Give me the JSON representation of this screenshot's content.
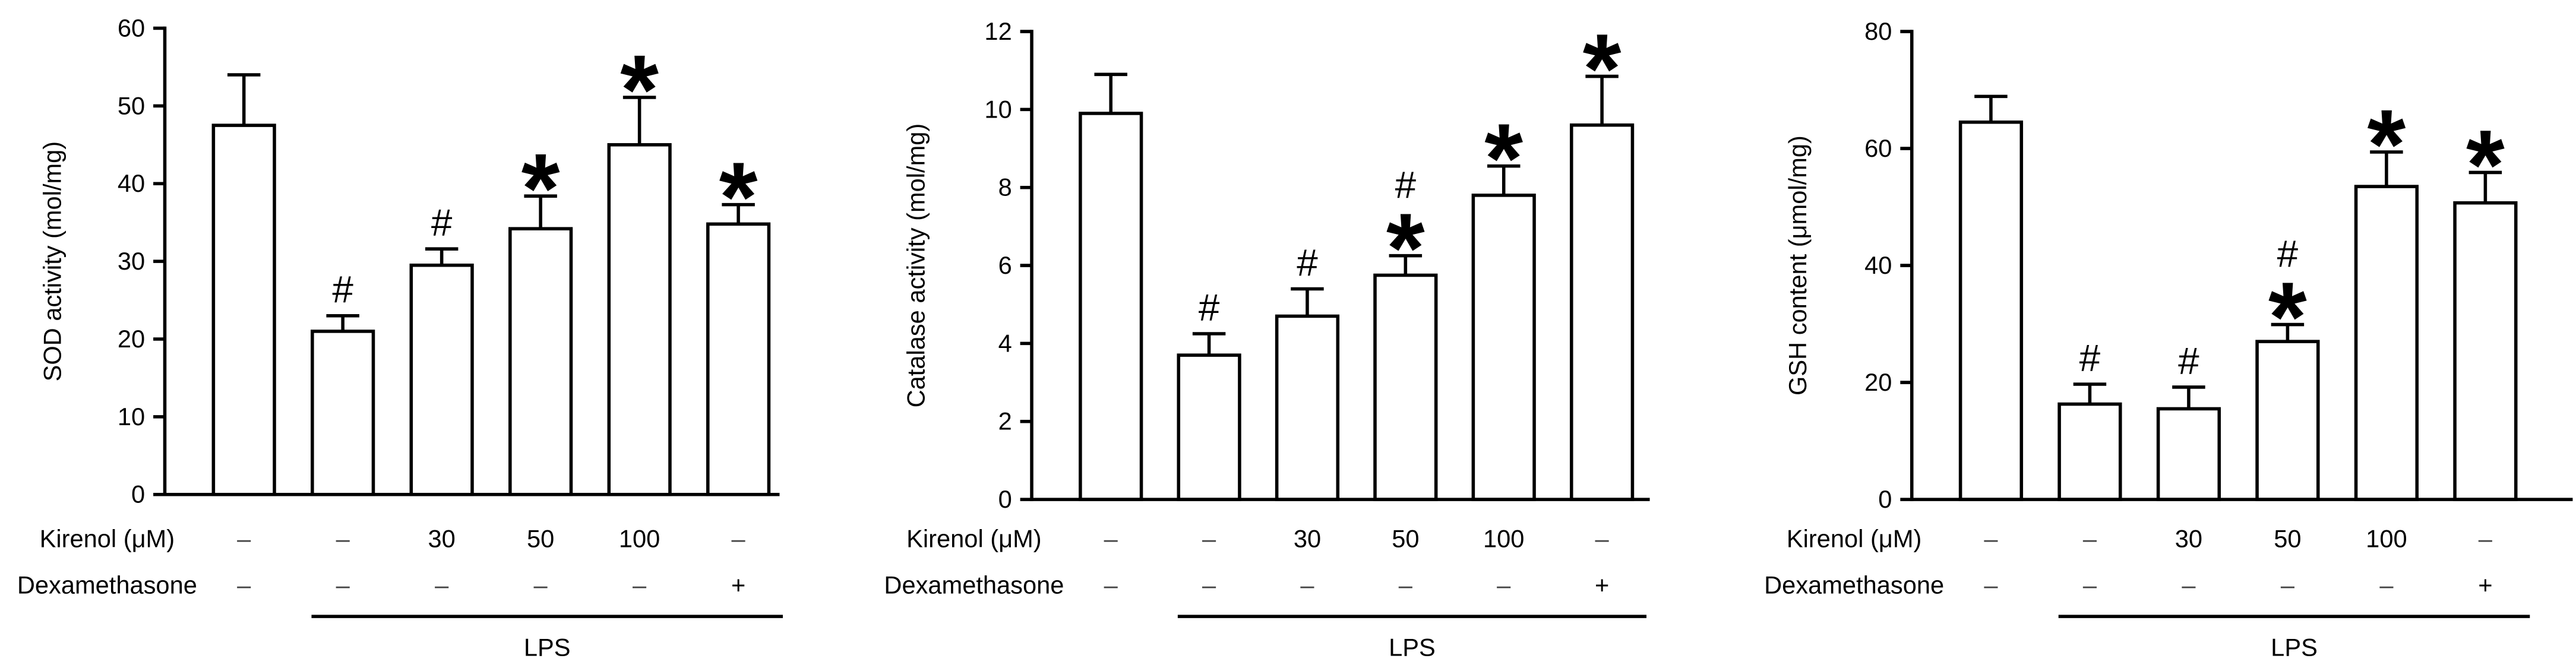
{
  "colors": {
    "background": "#ffffff",
    "bar_fill": "#ffffff",
    "ink": "#000000",
    "condition_ink": "#444444"
  },
  "chart_data": [
    {
      "type": "bar",
      "ylabel": "SOD activity (mol/mg)",
      "ylim": [
        0,
        60
      ],
      "yticks": [
        0,
        10,
        20,
        30,
        40,
        50,
        60
      ],
      "grid": false,
      "series": [
        {
          "values": [
            47.5,
            21.0,
            29.5,
            34.2,
            45.0,
            34.8
          ],
          "errors": [
            6.5,
            2.0,
            2.1,
            4.2,
            6.1,
            2.5
          ],
          "markers": [
            [],
            [
              "#"
            ],
            [
              "#"
            ],
            [
              "*"
            ],
            [
              "*"
            ],
            [
              "*"
            ]
          ]
        }
      ],
      "treatments": {
        "kirenol_label": "Kirenol (μM)",
        "kirenol": [
          "–",
          "–",
          "30",
          "50",
          "100",
          "–"
        ],
        "dexamethasone_label": "Dexamethasone",
        "dexamethasone": [
          "–",
          "–",
          "–",
          "–",
          "–",
          "+"
        ],
        "lps_label": "LPS",
        "lps": [
          false,
          true,
          true,
          true,
          true,
          true
        ]
      }
    },
    {
      "type": "bar",
      "ylabel": "Catalase activity (mol/mg)",
      "ylim": [
        0,
        12
      ],
      "yticks": [
        0,
        2,
        4,
        6,
        8,
        10,
        12
      ],
      "grid": false,
      "series": [
        {
          "values": [
            9.9,
            3.7,
            4.7,
            5.75,
            7.8,
            9.6
          ],
          "errors": [
            1.0,
            0.55,
            0.7,
            0.5,
            0.75,
            1.25
          ],
          "markers": [
            [],
            [
              "#"
            ],
            [
              "#"
            ],
            [
              "#",
              "*"
            ],
            [
              "*"
            ],
            [
              "*"
            ]
          ]
        }
      ],
      "treatments": {
        "kirenol_label": "Kirenol (μM)",
        "kirenol": [
          "–",
          "–",
          "30",
          "50",
          "100",
          "–"
        ],
        "dexamethasone_label": "Dexamethasone",
        "dexamethasone": [
          "–",
          "–",
          "–",
          "–",
          "–",
          "+"
        ],
        "lps_label": "LPS",
        "lps": [
          false,
          true,
          true,
          true,
          true,
          true
        ]
      }
    },
    {
      "type": "bar",
      "ylabel": "GSH content (μmol/mg)",
      "ylim": [
        0,
        80
      ],
      "yticks": [
        0,
        20,
        40,
        60,
        80
      ],
      "grid": false,
      "series": [
        {
          "values": [
            64.5,
            16.3,
            15.5,
            27.0,
            53.5,
            50.7
          ],
          "errors": [
            4.4,
            3.4,
            3.7,
            2.9,
            5.9,
            5.2
          ],
          "markers": [
            [],
            [
              "#"
            ],
            [
              "#"
            ],
            [
              "#",
              "*"
            ],
            [
              "*"
            ],
            [
              "*"
            ]
          ]
        }
      ],
      "treatments": {
        "kirenol_label": "Kirenol (μM)",
        "kirenol": [
          "–",
          "–",
          "30",
          "50",
          "100",
          "–"
        ],
        "dexamethasone_label": "Dexamethasone",
        "dexamethasone": [
          "–",
          "–",
          "–",
          "–",
          "–",
          "+"
        ],
        "lps_label": "LPS",
        "lps": [
          false,
          true,
          true,
          true,
          true,
          true
        ]
      }
    }
  ]
}
